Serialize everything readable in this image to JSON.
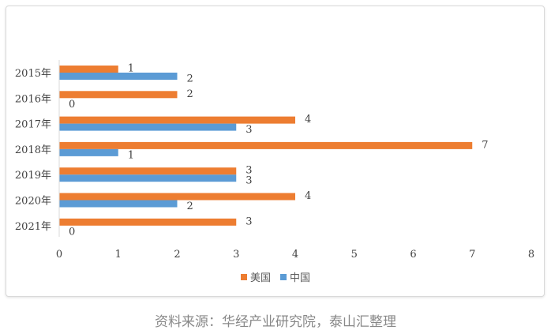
{
  "chart_data": {
    "type": "bar",
    "orientation": "horizontal",
    "categories": [
      "2015年",
      "2016年",
      "2017年",
      "2018年",
      "2019年",
      "2020年",
      "2021年"
    ],
    "series": [
      {
        "name": "美国",
        "values": [
          1,
          2,
          4,
          7,
          3,
          4,
          3
        ],
        "color": "#ED7D31"
      },
      {
        "name": "中国",
        "values": [
          2,
          0,
          3,
          1,
          3,
          2,
          0
        ],
        "color": "#5B9BD5"
      }
    ],
    "xlim": [
      0,
      8
    ],
    "x_ticks": [
      "0",
      "1",
      "2",
      "3",
      "4",
      "5",
      "6",
      "7",
      "8"
    ],
    "grid": false,
    "legend_position": "bottom",
    "data_labels": true
  },
  "source_text": "资料来源：华经产业研究院，泰山汇整理"
}
